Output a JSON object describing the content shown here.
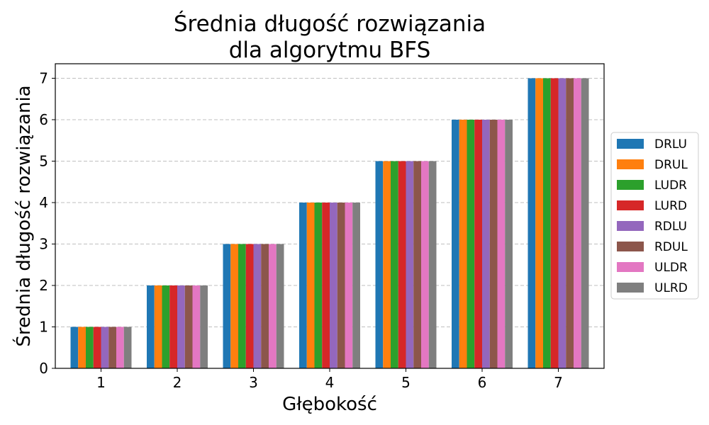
{
  "chart_data": {
    "type": "bar",
    "title": [
      "Średnia długość rozwiązania",
      "dla algorytmu BFS"
    ],
    "xlabel": "Głębokość",
    "ylabel": "Średnia długość rozwiązania",
    "categories": [
      "1",
      "2",
      "3",
      "4",
      "5",
      "6",
      "7"
    ],
    "yticks": [
      0,
      1,
      2,
      3,
      4,
      5,
      6,
      7
    ],
    "ylim": [
      0,
      7.35
    ],
    "grid": "y-dashed",
    "legend_position": "right-center",
    "series": [
      {
        "name": "DRLU",
        "color": "#1f77b4",
        "values": [
          1,
          2,
          3,
          4,
          5,
          6,
          7
        ]
      },
      {
        "name": "DRUL",
        "color": "#ff7f0e",
        "values": [
          1,
          2,
          3,
          4,
          5,
          6,
          7
        ]
      },
      {
        "name": "LUDR",
        "color": "#2ca02c",
        "values": [
          1,
          2,
          3,
          4,
          5,
          6,
          7
        ]
      },
      {
        "name": "LURD",
        "color": "#d62728",
        "values": [
          1,
          2,
          3,
          4,
          5,
          6,
          7
        ]
      },
      {
        "name": "RDLU",
        "color": "#9467bd",
        "values": [
          1,
          2,
          3,
          4,
          5,
          6,
          7
        ]
      },
      {
        "name": "RDUL",
        "color": "#8c564b",
        "values": [
          1,
          2,
          3,
          4,
          5,
          6,
          7
        ]
      },
      {
        "name": "ULDR",
        "color": "#e377c2",
        "values": [
          1,
          2,
          3,
          4,
          5,
          6,
          7
        ]
      },
      {
        "name": "ULRD",
        "color": "#7f7f7f",
        "values": [
          1,
          2,
          3,
          4,
          5,
          6,
          7
        ]
      }
    ]
  }
}
